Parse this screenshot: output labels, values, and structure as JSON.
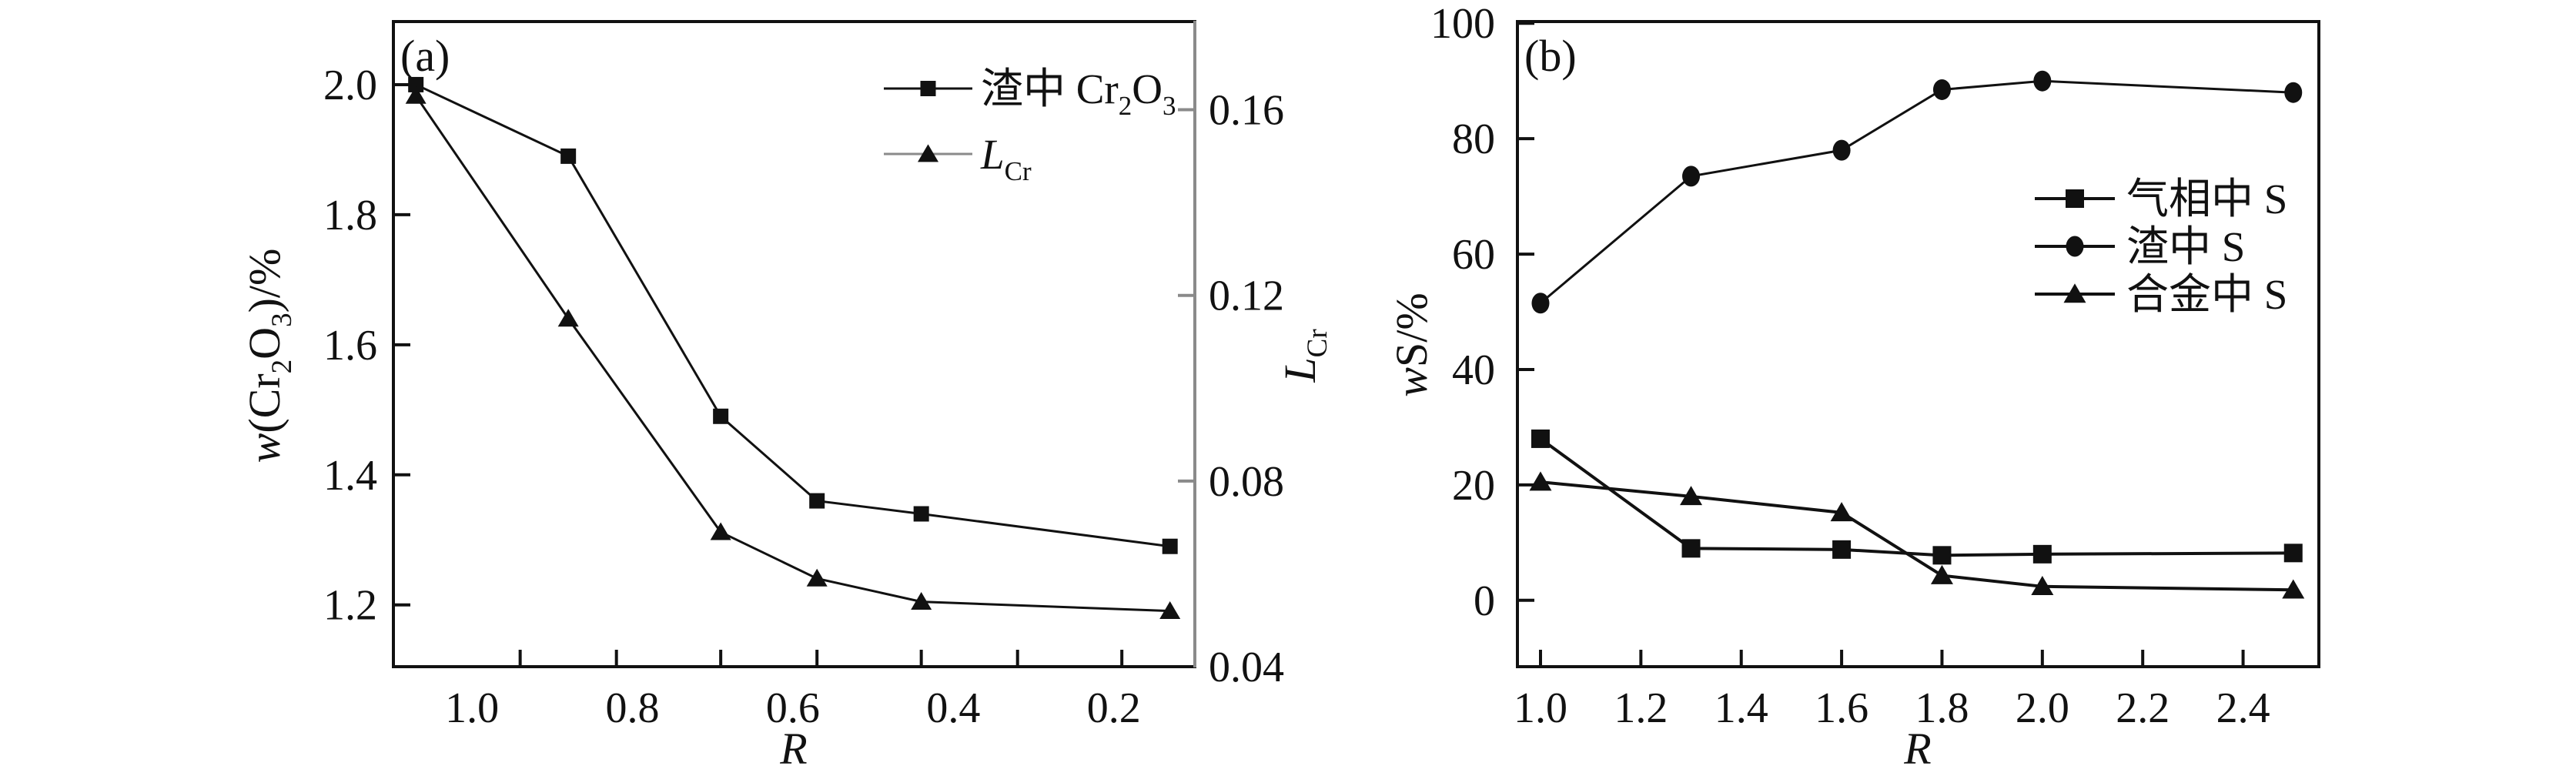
{
  "figure": {
    "background": "#ffffff",
    "ink_color": "#111111",
    "secondary_axis_color": "#8a8a8a"
  },
  "chart_data": [
    {
      "id": "a",
      "type": "line",
      "panel_tag": "(a)",
      "xlabel": "*R*",
      "ylabel_left": "*w*(Cr_{2}O_{3})/%",
      "ylabel_right": "*L*_{Cr}",
      "x_axis": {
        "min": 1.098,
        "max": 0.099,
        "reversed": true,
        "label_values": [
          1.0,
          0.8,
          0.6,
          0.4,
          0.2
        ],
        "label_texts": [
          "1.0",
          "0.8",
          "0.6",
          "0.4",
          "0.2"
        ],
        "tick_values": [
          0.94,
          0.82,
          0.69,
          0.57,
          0.44,
          0.32,
          0.19
        ]
      },
      "y_axis_left": {
        "min": 1.105,
        "max": 2.097,
        "label_values": [
          2.0,
          1.8,
          1.6,
          1.4,
          1.2
        ],
        "label_texts": [
          "2.0",
          "1.8",
          "1.6",
          "1.4",
          "1.2"
        ],
        "tick_values": [
          2.0,
          1.8,
          1.6,
          1.4,
          1.2
        ]
      },
      "y_axis_right": {
        "min": 0.04,
        "max": 0.179,
        "label_values": [
          0.16,
          0.12,
          0.08,
          0.04
        ],
        "label_texts": [
          "0.16",
          "0.12",
          "0.08",
          "0.04"
        ],
        "tick_values": [
          0.16,
          0.12,
          0.08
        ]
      },
      "series": [
        {
          "name": "渣中 Cr_{2}O_{3}",
          "marker": "square",
          "axis": "left",
          "x": [
            1.07,
            0.88,
            0.69,
            0.57,
            0.44,
            0.13
          ],
          "y": [
            2.0,
            1.89,
            1.49,
            1.36,
            1.34,
            1.29
          ]
        },
        {
          "name": "*L*_{Cr}",
          "marker": "triangle",
          "axis": "right",
          "legend_line_gray": true,
          "x": [
            1.07,
            0.88,
            0.69,
            0.57,
            0.44,
            0.13
          ],
          "y": [
            0.163,
            0.115,
            0.069,
            0.059,
            0.054,
            0.052
          ]
        }
      ],
      "legend_position": "top-right-inside"
    },
    {
      "id": "b",
      "type": "line",
      "panel_tag": "(b)",
      "xlabel": "*R*",
      "ylabel_left": "*w*S/%",
      "x_axis": {
        "min": 0.954,
        "max": 2.551,
        "reversed": false,
        "label_values": [
          1.0,
          1.2,
          1.4,
          1.6,
          1.8,
          2.0,
          2.2,
          2.4
        ],
        "label_texts": [
          "1.0",
          "1.2",
          "1.4",
          "1.6",
          "1.8",
          "2.0",
          "2.2",
          "2.4"
        ],
        "tick_values": [
          1.0,
          1.2,
          1.4,
          1.6,
          1.8,
          2.0,
          2.2,
          2.4
        ]
      },
      "y_axis_left": {
        "min": -11.5,
        "max": 100.3,
        "label_values": [
          0,
          20,
          40,
          60,
          80,
          100
        ],
        "label_texts": [
          "0",
          "20",
          "40",
          "60",
          "80",
          "100"
        ],
        "tick_values": [
          0,
          20,
          40,
          60,
          80,
          100
        ]
      },
      "series": [
        {
          "name": "气相中 S",
          "marker": "square",
          "axis": "left",
          "x": [
            1.0,
            1.3,
            1.6,
            1.8,
            2.0,
            2.5
          ],
          "y": [
            28,
            9,
            8.8,
            7.8,
            8,
            8.2
          ]
        },
        {
          "name": "渣中 S",
          "marker": "circle",
          "axis": "left",
          "x": [
            1.0,
            1.3,
            1.6,
            1.8,
            2.0,
            2.5
          ],
          "y": [
            51.5,
            73.5,
            78,
            88.5,
            90,
            88
          ]
        },
        {
          "name": "合金中 S",
          "marker": "triangle",
          "axis": "left",
          "x": [
            1.0,
            1.3,
            1.6,
            1.8,
            2.0,
            2.5
          ],
          "y": [
            20.5,
            18,
            15.2,
            4.3,
            2.4,
            1.8
          ]
        }
      ],
      "legend_position": "middle-right-inside"
    }
  ]
}
